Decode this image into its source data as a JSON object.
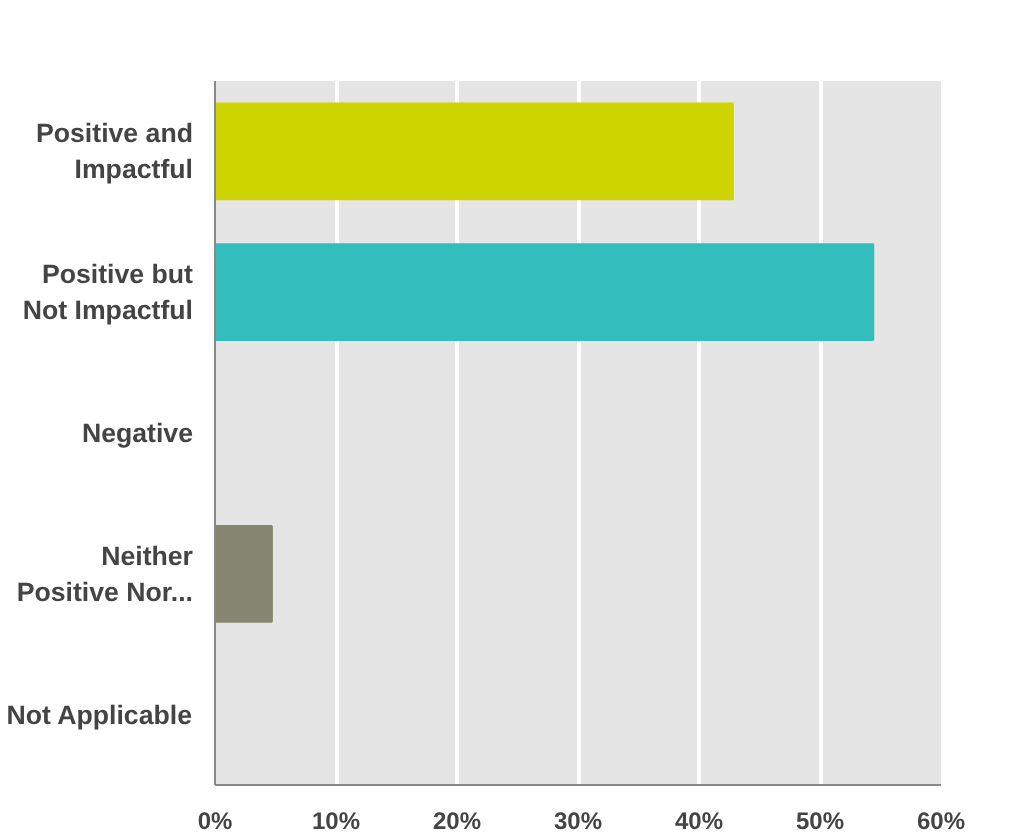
{
  "chart_data": {
    "type": "bar",
    "orientation": "horizontal",
    "categories": [
      "Positive and\nImpactful",
      "Positive but\nNot Impactful",
      "Negative",
      "Neither\nPositive Nor...",
      "Not Applicable"
    ],
    "values": [
      42.8,
      54.4,
      0,
      4.7,
      0
    ],
    "colors": [
      "#cdd400",
      "#33bdbd",
      "#e5e5e5",
      "#85866f",
      "#e5e5e5"
    ],
    "xlim": [
      0,
      60
    ],
    "xticks": [
      {
        "value": 0,
        "label": "0%"
      },
      {
        "value": 10,
        "label": "10%"
      },
      {
        "value": 20,
        "label": "20%"
      },
      {
        "value": 30,
        "label": "30%"
      },
      {
        "value": 40,
        "label": "40%"
      },
      {
        "value": 50,
        "label": "50%"
      },
      {
        "value": 60,
        "label": "60%"
      }
    ],
    "grid": "x"
  }
}
